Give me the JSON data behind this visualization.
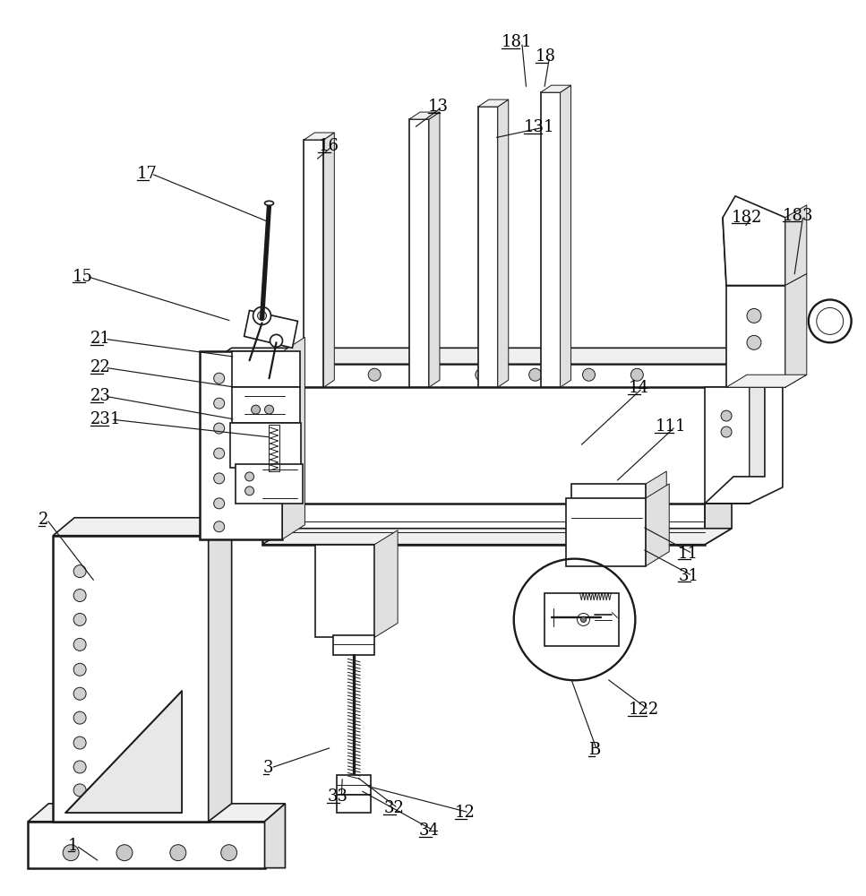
{
  "background_color": "#ffffff",
  "line_color": "#1a1a1a",
  "label_color": "#000000",
  "figsize": [
    9.67,
    10.0
  ],
  "dpi": 100,
  "annotations": [
    [
      "1",
      75,
      945,
      110,
      963
    ],
    [
      "2",
      42,
      580,
      105,
      650
    ],
    [
      "3",
      293,
      858,
      370,
      835
    ],
    [
      "11",
      758,
      618,
      718,
      588
    ],
    [
      "12",
      508,
      908,
      408,
      878
    ],
    [
      "13",
      478,
      118,
      462,
      142
    ],
    [
      "14",
      702,
      433,
      648,
      498
    ],
    [
      "15",
      80,
      308,
      258,
      358
    ],
    [
      "16",
      355,
      162,
      352,
      178
    ],
    [
      "17",
      152,
      193,
      302,
      248
    ],
    [
      "18",
      598,
      62,
      608,
      98
    ],
    [
      "21",
      100,
      378,
      262,
      398
    ],
    [
      "22",
      100,
      410,
      262,
      432
    ],
    [
      "23",
      100,
      442,
      262,
      468
    ],
    [
      "31",
      758,
      643,
      718,
      613
    ],
    [
      "32",
      428,
      903,
      398,
      868
    ],
    [
      "33",
      365,
      890,
      382,
      868
    ],
    [
      "34",
      468,
      928,
      402,
      883
    ],
    [
      "111",
      732,
      476,
      688,
      538
    ],
    [
      "122",
      702,
      793,
      678,
      758
    ],
    [
      "131",
      585,
      141,
      552,
      153
    ],
    [
      "181",
      560,
      46,
      588,
      98
    ],
    [
      "182",
      818,
      242,
      832,
      253
    ],
    [
      "183",
      875,
      240,
      888,
      308
    ],
    [
      "231",
      100,
      468,
      302,
      488
    ],
    [
      "B",
      658,
      838,
      638,
      758
    ]
  ]
}
